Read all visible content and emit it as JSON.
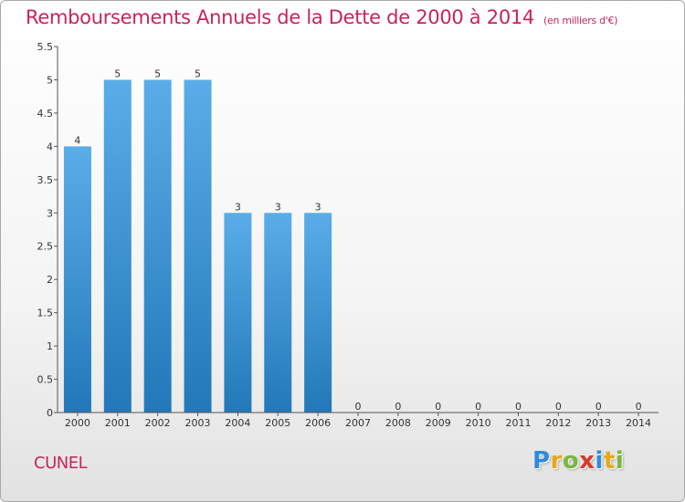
{
  "title": "Remboursements Annuels de la Dette de 2000 à 2014",
  "unit": "(en milliers d'€)",
  "commune": "CUNEL",
  "logo": {
    "letters": [
      "P",
      "r",
      "o",
      "x",
      "i",
      "t",
      "i"
    ],
    "colors": [
      "#2f8ad8",
      "#e8a817",
      "#79b83a",
      "#d8392a",
      "#2f8ad8",
      "#e8a817",
      "#79b83a"
    ]
  },
  "colors": {
    "title": "#c8245a",
    "bar_top": "#5aade8",
    "bar_bottom": "#2278b8",
    "axis": "#555555",
    "grid": "#dddddd"
  },
  "chart_data": {
    "type": "bar",
    "title": "Remboursements Annuels de la Dette de 2000 à 2014",
    "xlabel": "",
    "ylabel": "",
    "categories": [
      "2000",
      "2001",
      "2002",
      "2003",
      "2004",
      "2005",
      "2006",
      "2007",
      "2008",
      "2009",
      "2010",
      "2011",
      "2012",
      "2013",
      "2014"
    ],
    "values": [
      4,
      5,
      5,
      5,
      3,
      3,
      3,
      0,
      0,
      0,
      0,
      0,
      0,
      0,
      0
    ],
    "data_labels": [
      "4",
      "5",
      "5",
      "5",
      "3",
      "3",
      "3",
      "0",
      "0",
      "0",
      "0",
      "0",
      "0",
      "0",
      "0"
    ],
    "ylim": [
      0,
      5.5
    ],
    "yticks": [
      0,
      0.5,
      1,
      1.5,
      2,
      2.5,
      3,
      3.5,
      4,
      4.5,
      5,
      5.5
    ],
    "ytick_labels": [
      "0",
      "0.5",
      "1",
      "1.5",
      "2",
      "2.5",
      "3",
      "3.5",
      "4",
      "4.5",
      "5",
      "5.5"
    ],
    "grid": false,
    "legend": "none"
  }
}
